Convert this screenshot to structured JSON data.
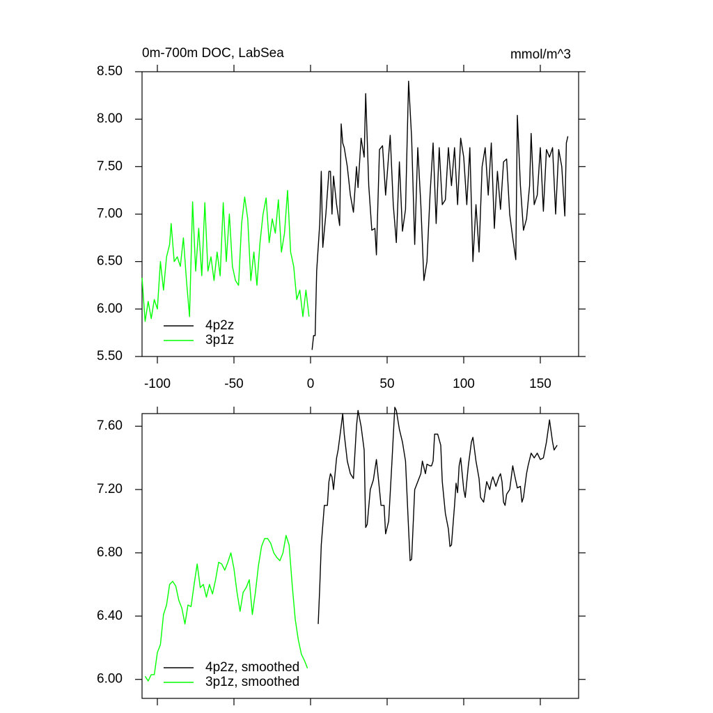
{
  "chart_data": [
    {
      "type": "line",
      "title": "0m-700m DOC, LabSea",
      "units": "mmol/m^3",
      "xlim": [
        -110,
        175
      ],
      "ylim": [
        5.5,
        8.5
      ],
      "xticks": [
        -100,
        -50,
        0,
        50,
        100,
        150
      ],
      "yticks": [
        {
          "value": 5.5,
          "label": "5.50"
        },
        {
          "value": 6,
          "label": "6.00"
        },
        {
          "value": 6.5,
          "label": "6.50"
        },
        {
          "value": 7,
          "label": "7.00"
        },
        {
          "value": 7.5,
          "label": "7.50"
        },
        {
          "value": 8,
          "label": "8.00"
        },
        {
          "value": 8.5,
          "label": "8.50"
        }
      ],
      "xtick_labels": true,
      "legend": "lower left",
      "series": [
        {
          "name": "4p2z",
          "color": "#000000",
          "x": [
            1,
            2,
            3,
            4,
            6,
            7,
            8,
            10,
            12,
            13,
            14,
            15,
            17,
            19,
            20,
            21,
            22,
            24,
            26,
            28,
            30,
            31,
            33,
            35,
            36,
            38,
            40,
            42,
            43,
            45,
            47,
            49,
            52,
            54,
            56,
            58,
            60,
            62,
            64,
            66,
            68,
            70,
            72,
            74,
            76,
            78,
            80,
            82,
            84,
            86,
            88,
            90,
            92,
            94,
            96,
            98,
            100,
            102,
            104,
            106,
            108,
            110,
            112,
            114,
            116,
            118,
            120,
            122,
            124,
            126,
            128,
            130,
            132,
            134,
            135,
            137,
            139,
            141,
            143,
            144,
            146,
            148,
            150,
            152,
            154,
            156,
            158,
            160,
            162,
            164,
            166,
            167,
            168
          ],
          "values": [
            5.57,
            5.72,
            5.72,
            6.4,
            6.9,
            7.45,
            6.65,
            7.0,
            7.45,
            7.45,
            7.0,
            7.4,
            7.1,
            6.88,
            7.95,
            7.75,
            7.7,
            7.5,
            7.2,
            7.02,
            7.5,
            7.28,
            7.8,
            7.6,
            8.27,
            7.3,
            6.83,
            6.85,
            6.57,
            7.68,
            7.72,
            7.2,
            7.83,
            7.1,
            6.7,
            7.55,
            6.82,
            7.05,
            8.4,
            7.8,
            6.68,
            7.7,
            7.1,
            6.3,
            6.5,
            7.2,
            7.75,
            6.9,
            7.7,
            7.1,
            7.15,
            7.7,
            7.3,
            7.7,
            7.1,
            7.8,
            7.6,
            7.1,
            7.7,
            6.5,
            7.1,
            6.6,
            7.5,
            7.7,
            7.2,
            7.75,
            6.85,
            7.45,
            7.05,
            7.55,
            7.58,
            7.0,
            6.75,
            6.52,
            8.04,
            7.3,
            6.83,
            6.95,
            7.3,
            7.85,
            7.1,
            7.2,
            7.7,
            7.03,
            7.68,
            7.6,
            7.7,
            7.0,
            7.68,
            7.5,
            6.98,
            7.75,
            7.82
          ]
        },
        {
          "name": "3p1z",
          "color": "#00ff00",
          "x": [
            -110,
            -108,
            -106,
            -104,
            -102,
            -100,
            -98,
            -96,
            -94,
            -92,
            -91,
            -89,
            -87,
            -85,
            -83,
            -81,
            -79,
            -77,
            -75,
            -73,
            -71,
            -69,
            -67,
            -65,
            -63,
            -61,
            -59,
            -57,
            -55,
            -53,
            -51,
            -49,
            -47,
            -45,
            -43,
            -41,
            -39,
            -37,
            -35,
            -33,
            -31,
            -29,
            -27,
            -25,
            -23,
            -21,
            -19,
            -17,
            -15,
            -13,
            -11,
            -9,
            -7,
            -5,
            -3,
            -1
          ],
          "values": [
            6.33,
            5.87,
            6.08,
            5.9,
            6.1,
            6.0,
            6.5,
            6.2,
            6.55,
            6.68,
            6.9,
            6.5,
            6.55,
            6.45,
            6.75,
            6.3,
            5.92,
            7.13,
            6.4,
            6.85,
            6.35,
            7.12,
            6.4,
            6.55,
            6.3,
            6.6,
            6.35,
            7.12,
            6.5,
            7.0,
            6.45,
            6.3,
            6.25,
            6.9,
            7.18,
            6.95,
            6.3,
            6.6,
            6.25,
            6.7,
            7.0,
            7.17,
            6.7,
            6.95,
            6.8,
            7.15,
            6.6,
            6.8,
            7.25,
            6.6,
            6.45,
            6.1,
            6.2,
            5.92,
            6.2,
            5.92
          ]
        }
      ]
    },
    {
      "type": "line",
      "xlim": [
        -110,
        175
      ],
      "ylim": [
        5.88,
        7.68
      ],
      "xticks": [
        -100,
        -50,
        0,
        50,
        100,
        150
      ],
      "yticks": [
        {
          "value": 6,
          "label": "6.00"
        },
        {
          "value": 6.4,
          "label": "6.40"
        },
        {
          "value": 6.8,
          "label": "6.80"
        },
        {
          "value": 7.2,
          "label": "7.20"
        },
        {
          "value": 7.6,
          "label": "7.60"
        }
      ],
      "xtick_labels": false,
      "legend": "lower left",
      "series": [
        {
          "name": "4p2z, smoothed",
          "color": "#000000",
          "x": [
            5,
            6,
            7,
            9,
            10,
            11,
            12,
            13,
            14,
            15,
            17,
            18,
            20,
            21,
            22,
            24,
            26,
            28,
            30,
            31,
            33,
            35,
            36,
            37,
            39,
            41,
            43,
            45,
            46,
            48,
            49,
            51,
            53,
            55,
            56,
            58,
            60,
            62,
            64,
            65,
            66,
            68,
            70,
            72,
            73,
            75,
            76,
            78,
            79,
            80,
            81,
            83,
            85,
            86,
            88,
            90,
            91,
            92,
            94,
            95,
            96,
            97,
            98,
            100,
            101,
            103,
            105,
            106,
            108,
            110,
            111,
            113,
            115,
            117,
            118,
            119,
            121,
            123,
            124,
            125,
            126,
            127,
            128,
            130,
            132,
            133,
            135,
            137,
            138,
            139,
            141,
            142,
            144,
            146,
            148,
            150,
            152,
            154,
            156,
            158,
            159,
            161
          ],
          "values": [
            6.35,
            6.58,
            6.85,
            7.1,
            7.1,
            7.1,
            7.25,
            7.3,
            7.28,
            7.2,
            7.4,
            7.45,
            7.6,
            7.68,
            7.55,
            7.38,
            7.3,
            7.27,
            7.6,
            7.7,
            7.6,
            7.45,
            6.96,
            6.98,
            7.2,
            7.26,
            7.39,
            7.2,
            7.1,
            7.1,
            6.92,
            7.0,
            7.35,
            7.72,
            7.7,
            7.58,
            7.5,
            7.38,
            6.95,
            6.75,
            6.76,
            7.2,
            7.25,
            7.3,
            7.38,
            7.3,
            7.36,
            7.35,
            7.35,
            7.38,
            7.55,
            7.55,
            7.48,
            7.25,
            7.05,
            6.95,
            6.84,
            6.85,
            7.1,
            7.24,
            7.18,
            7.35,
            7.4,
            7.2,
            7.15,
            7.35,
            7.5,
            7.53,
            7.38,
            7.27,
            7.15,
            7.12,
            7.25,
            7.2,
            7.25,
            7.28,
            7.22,
            7.28,
            7.3,
            7.25,
            7.12,
            7.1,
            7.17,
            7.2,
            7.35,
            7.3,
            7.21,
            7.22,
            7.12,
            7.15,
            7.3,
            7.35,
            7.43,
            7.4,
            7.43,
            7.39,
            7.4,
            7.5,
            7.64,
            7.5,
            7.45,
            7.48
          ]
        },
        {
          "name": "3p1z, smoothed",
          "color": "#00ff00",
          "x": [
            -108,
            -106,
            -104,
            -102,
            -100,
            -98,
            -96,
            -94,
            -92,
            -90,
            -88,
            -86,
            -84,
            -82,
            -80,
            -78,
            -76,
            -74,
            -72,
            -70,
            -68,
            -66,
            -64,
            -62,
            -60,
            -58,
            -56,
            -54,
            -52,
            -50,
            -48,
            -46,
            -44,
            -42,
            -40,
            -38,
            -36,
            -34,
            -32,
            -30,
            -28,
            -26,
            -24,
            -22,
            -20,
            -18,
            -16,
            -14,
            -12,
            -10,
            -8,
            -6,
            -4,
            -2
          ],
          "values": [
            6.02,
            5.99,
            6.03,
            6.03,
            6.17,
            6.22,
            6.41,
            6.47,
            6.6,
            6.62,
            6.59,
            6.5,
            6.45,
            6.35,
            6.47,
            6.46,
            6.6,
            6.73,
            6.58,
            6.6,
            6.52,
            6.6,
            6.54,
            6.63,
            6.74,
            6.73,
            6.69,
            6.74,
            6.8,
            6.7,
            6.55,
            6.43,
            6.55,
            6.58,
            6.63,
            6.41,
            6.55,
            6.72,
            6.84,
            6.89,
            6.89,
            6.86,
            6.8,
            6.77,
            6.75,
            6.8,
            6.91,
            6.85,
            6.6,
            6.38,
            6.25,
            6.16,
            6.12,
            6.07
          ]
        }
      ]
    }
  ]
}
